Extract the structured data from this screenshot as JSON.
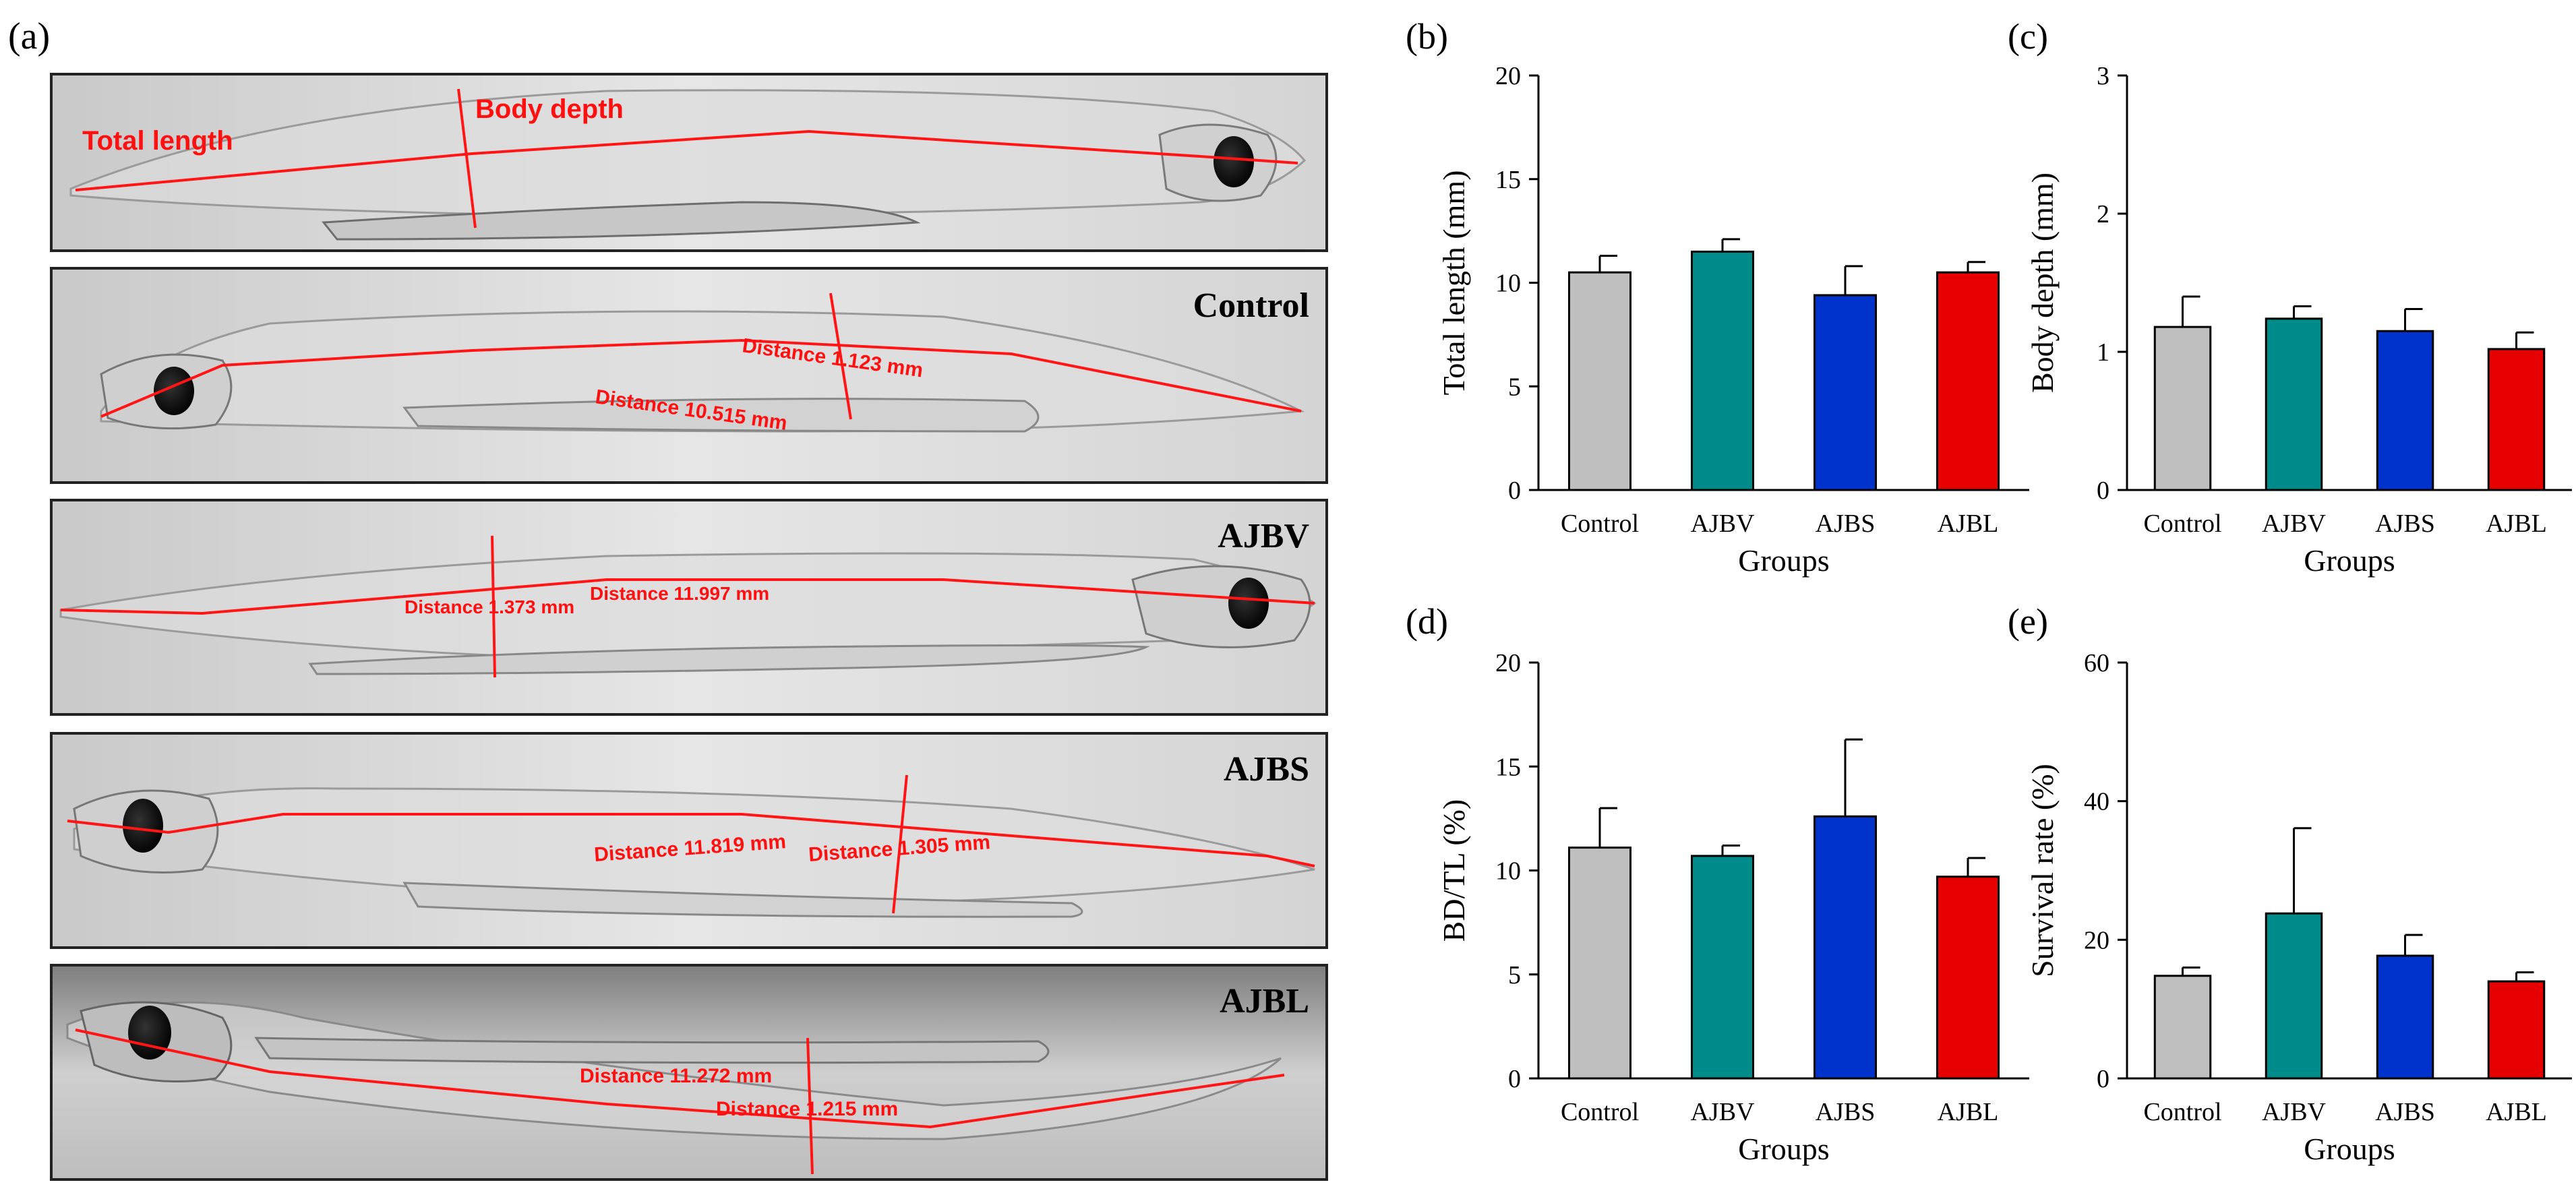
{
  "panel_a": {
    "label": "(a)",
    "panels": [
      {
        "title": "",
        "annotations": [
          "Total length",
          "Body depth"
        ],
        "bold": true
      },
      {
        "title": "Control",
        "annotations": [
          "Distance 1.123 mm",
          "Distance 10.515 mm"
        ],
        "bold": false
      },
      {
        "title": "AJBV",
        "annotations": [
          "Distance 1.373 mm",
          "Distance 11.997 mm"
        ],
        "bold": false
      },
      {
        "title": "AJBS",
        "annotations": [
          "Distance 11.819 mm",
          "Distance 1.305 mm"
        ],
        "bold": false
      },
      {
        "title": "AJBL",
        "annotations": [
          "Distance 11.272 mm",
          "Distance 1.215 mm"
        ],
        "bold": false
      }
    ]
  },
  "colors": {
    "Control": "#bfbfbf",
    "AJBV": "#008b8b",
    "AJBS": "#0033cc",
    "AJBL": "#e60000"
  },
  "chart_data": [
    {
      "id": "b",
      "label": "(b)",
      "type": "bar",
      "categories": [
        "Control",
        "AJBV",
        "AJBS",
        "AJBL"
      ],
      "values": [
        10.5,
        11.5,
        9.4,
        10.5
      ],
      "errors": [
        0.8,
        0.6,
        1.4,
        0.5
      ],
      "xlabel": "Groups",
      "ylabel": "Total length (mm)",
      "ylim": [
        0,
        20
      ],
      "yticks": [
        0,
        5,
        10,
        15,
        20
      ]
    },
    {
      "id": "c",
      "label": "(c)",
      "type": "bar",
      "categories": [
        "Control",
        "AJBV",
        "AJBS",
        "AJBL"
      ],
      "values": [
        1.18,
        1.24,
        1.15,
        1.02
      ],
      "errors": [
        0.22,
        0.09,
        0.16,
        0.12
      ],
      "xlabel": "Groups",
      "ylabel": "Body depth (mm)",
      "ylim": [
        0,
        3
      ],
      "yticks": [
        0,
        1,
        2,
        3
      ]
    },
    {
      "id": "d",
      "label": "(d)",
      "type": "bar",
      "categories": [
        "Control",
        "AJBV",
        "AJBS",
        "AJBL"
      ],
      "values": [
        11.1,
        10.7,
        12.6,
        9.7
      ],
      "errors": [
        1.9,
        0.5,
        3.7,
        0.9
      ],
      "xlabel": "Groups",
      "ylabel": "BD/TL (%)",
      "ylim": [
        0,
        20
      ],
      "yticks": [
        0,
        5,
        10,
        15,
        20
      ]
    },
    {
      "id": "e",
      "label": "(e)",
      "type": "bar",
      "categories": [
        "Control",
        "AJBV",
        "AJBS",
        "AJBL"
      ],
      "values": [
        14.8,
        23.8,
        17.7,
        14.0
      ],
      "errors": [
        1.2,
        12.3,
        3.0,
        1.3
      ],
      "xlabel": "Groups",
      "ylabel": "Survival rate (%)",
      "ylim": [
        0,
        60
      ],
      "yticks": [
        0,
        20,
        40,
        60
      ]
    }
  ]
}
